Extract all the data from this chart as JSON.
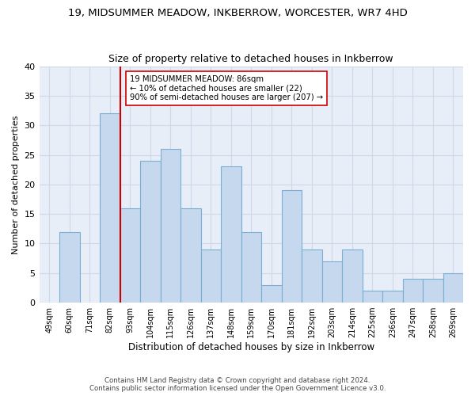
{
  "title": "19, MIDSUMMER MEADOW, INKBERROW, WORCESTER, WR7 4HD",
  "subtitle": "Size of property relative to detached houses in Inkberrow",
  "xlabel": "Distribution of detached houses by size in Inkberrow",
  "ylabel": "Number of detached properties",
  "categories": [
    "49sqm",
    "60sqm",
    "71sqm",
    "82sqm",
    "93sqm",
    "104sqm",
    "115sqm",
    "126sqm",
    "137sqm",
    "148sqm",
    "159sqm",
    "170sqm",
    "181sqm",
    "192sqm",
    "203sqm",
    "214sqm",
    "225sqm",
    "236sqm",
    "247sqm",
    "258sqm",
    "269sqm"
  ],
  "values": [
    0,
    12,
    0,
    32,
    16,
    24,
    26,
    16,
    9,
    23,
    12,
    3,
    19,
    9,
    7,
    9,
    2,
    2,
    4,
    4,
    5
  ],
  "bar_color": "#c5d8ed",
  "bar_edge_color": "#7aafd4",
  "vline_color": "#cc0000",
  "vline_x_index": 3,
  "annotation_text": "19 MIDSUMMER MEADOW: 86sqm\n← 10% of detached houses are smaller (22)\n90% of semi-detached houses are larger (207) →",
  "annotation_box_color": "#ffffff",
  "annotation_box_edge": "#cc0000",
  "ylim": [
    0,
    40
  ],
  "yticks": [
    0,
    5,
    10,
    15,
    20,
    25,
    30,
    35,
    40
  ],
  "grid_color": "#d0d8e8",
  "bg_color": "#e8eef8",
  "footer1": "Contains HM Land Registry data © Crown copyright and database right 2024.",
  "footer2": "Contains public sector information licensed under the Open Government Licence v3.0.",
  "title_fontsize": 9.5,
  "subtitle_fontsize": 9
}
